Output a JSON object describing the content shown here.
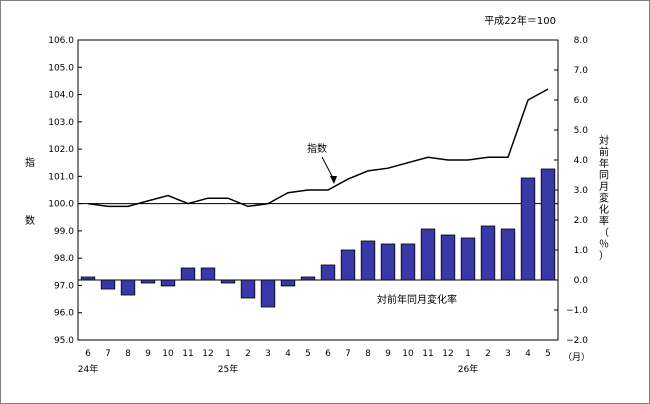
{
  "note": "平成22年＝100",
  "ylabel_left": [
    "指",
    "数"
  ],
  "ylabel_right": [
    "対",
    "前",
    "年",
    "同",
    "月",
    "変",
    "化",
    "率",
    "（",
    "％",
    "）"
  ],
  "month_unit": "（月）",
  "chart_data": {
    "type": "bar+line",
    "categories": [
      "6",
      "7",
      "8",
      "9",
      "10",
      "11",
      "12",
      "1",
      "2",
      "3",
      "4",
      "5",
      "6",
      "7",
      "8",
      "9",
      "10",
      "11",
      "12",
      "1",
      "2",
      "3",
      "4",
      "5"
    ],
    "year_labels": [
      {
        "index": 0,
        "label": "24年"
      },
      {
        "index": 7,
        "label": "25年"
      },
      {
        "index": 19,
        "label": "26年"
      }
    ],
    "line_series": {
      "name": "指数",
      "axis": "left",
      "values": [
        100.0,
        99.9,
        99.9,
        100.1,
        100.3,
        100.0,
        100.2,
        100.2,
        99.9,
        100.0,
        100.4,
        100.5,
        100.5,
        100.9,
        101.2,
        101.3,
        101.5,
        101.7,
        101.6,
        101.6,
        101.7,
        101.7,
        103.8,
        104.2
      ]
    },
    "bar_series": {
      "name": "対前年同月変化率",
      "axis": "right",
      "values": [
        0.1,
        -0.3,
        -0.5,
        -0.1,
        -0.2,
        0.4,
        0.4,
        -0.1,
        -0.6,
        -0.9,
        -0.2,
        0.1,
        0.5,
        1.0,
        1.3,
        1.2,
        1.2,
        1.7,
        1.5,
        1.4,
        1.8,
        1.7,
        3.4,
        3.7
      ]
    },
    "y_left": {
      "min": 95.0,
      "max": 106.0,
      "step": 1.0,
      "ticks": [
        "95.0",
        "96.0",
        "97.0",
        "98.0",
        "99.0",
        "100.0",
        "101.0",
        "102.0",
        "103.0",
        "104.0",
        "105.0",
        "106.0"
      ]
    },
    "y_right": {
      "min": -2.0,
      "max": 8.0,
      "step": 1.0,
      "ticks": [
        "−2.0",
        "−1.0",
        "0.0",
        "1.0",
        "2.0",
        "3.0",
        "4.0",
        "5.0",
        "6.0",
        "7.0",
        "8.0"
      ]
    },
    "reference_line_value": 100.0,
    "annotations": {
      "line_label": "指数",
      "bar_label": "対前年同月変化率"
    },
    "colors": {
      "bar_fill": "#3838a8",
      "bar_stroke": "#000000",
      "line": "#000000"
    }
  }
}
